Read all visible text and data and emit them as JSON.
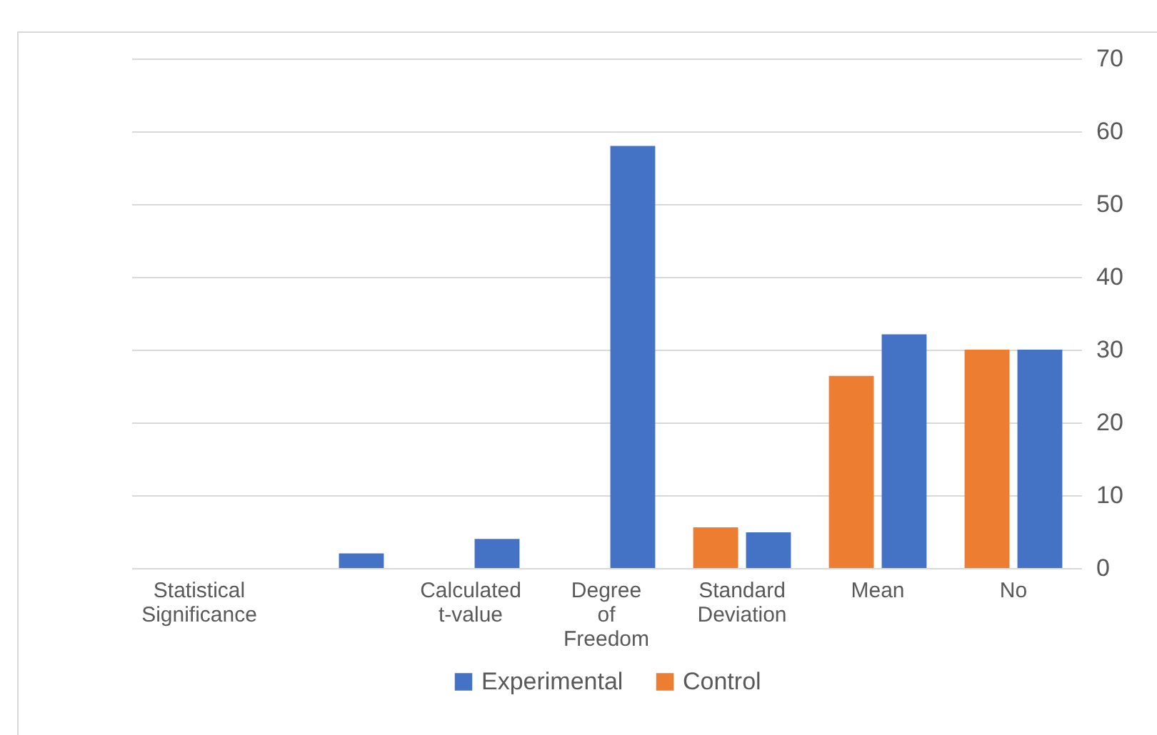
{
  "chart_data": {
    "type": "bar",
    "categories": [
      "Statistical Significance",
      null,
      "Calculated t-value",
      "Degree of Freedom",
      "Standard Deviation",
      "Mean",
      "No"
    ],
    "series": [
      {
        "name": "Experimental",
        "color": "#4472c4",
        "values": [
          null,
          2,
          4,
          58,
          4.9,
          32.1,
          30
        ]
      },
      {
        "name": "Control",
        "color": "#ed7d31",
        "values": [
          null,
          null,
          null,
          null,
          5.6,
          26.4,
          30
        ]
      }
    ],
    "ylim": [
      0,
      70
    ],
    "yticks": [
      0,
      10,
      20,
      30,
      40,
      50,
      60,
      70
    ],
    "grid": "y",
    "legend": "bottom"
  }
}
